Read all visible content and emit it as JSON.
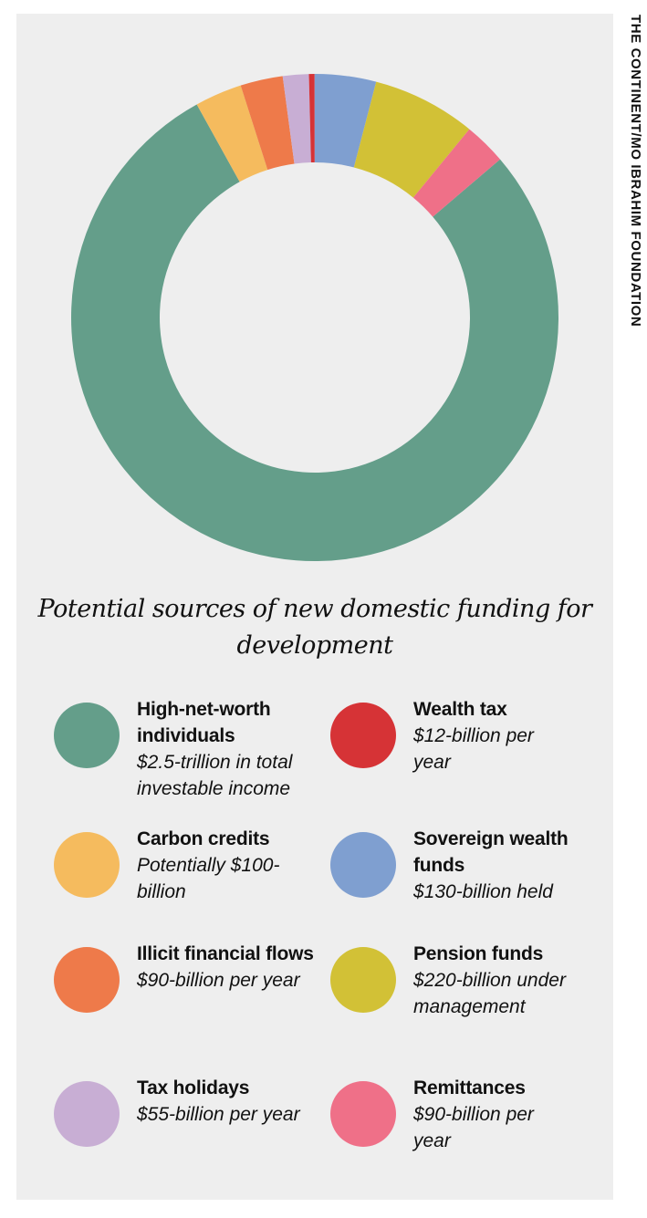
{
  "chart_data": {
    "type": "donut",
    "title": "Potential sources of new domestic funding for development",
    "source": "THE CONTINENT/MO IBRAHIM FOUNDATION",
    "categories": [
      "High-net-worth individuals",
      "Carbon credits",
      "Illicit financial flows",
      "Tax holidays",
      "Wealth tax",
      "Sovereign wealth funds",
      "Pension funds",
      "Remittances"
    ],
    "values": [
      2500,
      100,
      90,
      55,
      12,
      130,
      220,
      90
    ],
    "value_labels": [
      "$2.5-trillion in total investable income",
      "Potentially $100-billion",
      "$90-billion per year",
      "$55-billion per year",
      "$12-billion per year",
      "$130-billion held",
      "$220-billion under management",
      "$90-billion per year"
    ],
    "colors": [
      "#649e8a",
      "#f5bb5e",
      "#ee7a4a",
      "#c8aed4",
      "#d63336",
      "#7f9fd0",
      "#d2c136",
      "#ef7088"
    ]
  }
}
